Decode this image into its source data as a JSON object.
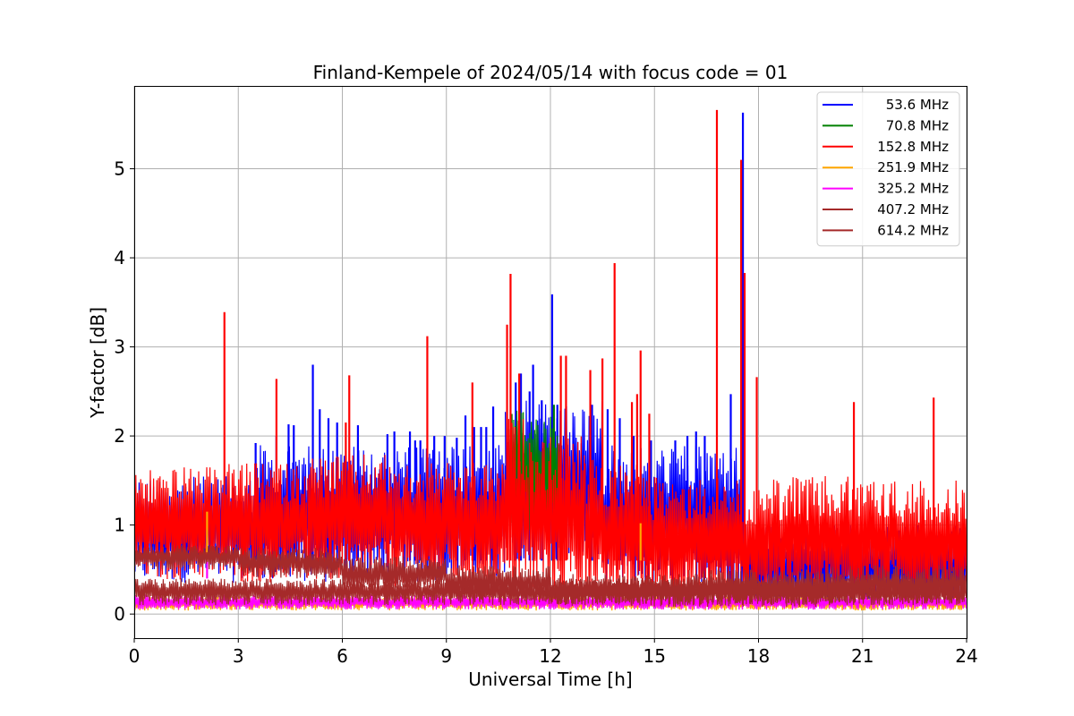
{
  "chart_data": {
    "type": "line",
    "title": "Finland-Kempele of 2024/05/14 with focus code = 01",
    "xlabel": "Universal Time [h]",
    "ylabel": "Y-factor [dB]",
    "xlim": [
      0,
      24
    ],
    "ylim": [
      -0.27,
      5.93
    ],
    "xticks": [
      0,
      3,
      6,
      9,
      12,
      15,
      18,
      21,
      24
    ],
    "yticks": [
      0,
      1,
      2,
      3,
      4,
      5
    ],
    "grid": true,
    "legend_position": "top-right",
    "series": [
      {
        "name": "53.6 MHz",
        "color": "#0000ff",
        "segments": [
          {
            "x": [
              0,
              3.5
            ],
            "low": 0.35,
            "high": 1.55
          },
          {
            "x": [
              3.5,
              10.7
            ],
            "low": 0.35,
            "high": 1.9
          },
          {
            "x": [
              10.7,
              13.5
            ],
            "low": 0.6,
            "high": 2.4
          },
          {
            "x": [
              13.5,
              17.5
            ],
            "low": 0.3,
            "high": 1.9
          },
          {
            "x": [
              17.5,
              24
            ],
            "low": 0.1,
            "high": 1.0
          }
        ],
        "spikes": [
          {
            "x": 3.5,
            "y": 1.92
          },
          {
            "x": 4.1,
            "y": 2.0
          },
          {
            "x": 4.45,
            "y": 2.13
          },
          {
            "x": 4.6,
            "y": 2.12
          },
          {
            "x": 5.15,
            "y": 2.8
          },
          {
            "x": 5.35,
            "y": 2.3
          },
          {
            "x": 5.6,
            "y": 2.2
          },
          {
            "x": 5.85,
            "y": 2.15
          },
          {
            "x": 6.45,
            "y": 2.12
          },
          {
            "x": 7.3,
            "y": 2.02
          },
          {
            "x": 7.5,
            "y": 2.05
          },
          {
            "x": 7.95,
            "y": 2.05
          },
          {
            "x": 8.1,
            "y": 1.95
          },
          {
            "x": 8.25,
            "y": 1.95
          },
          {
            "x": 8.65,
            "y": 2.0
          },
          {
            "x": 8.95,
            "y": 2.0
          },
          {
            "x": 9.3,
            "y": 1.98
          },
          {
            "x": 9.55,
            "y": 2.23
          },
          {
            "x": 9.8,
            "y": 2.1
          },
          {
            "x": 10.0,
            "y": 2.1
          },
          {
            "x": 10.15,
            "y": 2.1
          },
          {
            "x": 10.35,
            "y": 2.33
          },
          {
            "x": 11.0,
            "y": 2.6
          },
          {
            "x": 11.15,
            "y": 2.7
          },
          {
            "x": 11.4,
            "y": 2.5
          },
          {
            "x": 11.5,
            "y": 2.8
          },
          {
            "x": 11.75,
            "y": 2.4
          },
          {
            "x": 12.05,
            "y": 3.59
          },
          {
            "x": 12.2,
            "y": 2.35
          },
          {
            "x": 13.2,
            "y": 2.35
          },
          {
            "x": 13.65,
            "y": 2.3
          },
          {
            "x": 14.0,
            "y": 2.2
          },
          {
            "x": 14.4,
            "y": 2.0
          },
          {
            "x": 14.9,
            "y": 1.95
          },
          {
            "x": 15.6,
            "y": 1.95
          },
          {
            "x": 15.95,
            "y": 2.0
          },
          {
            "x": 16.2,
            "y": 2.05
          },
          {
            "x": 16.45,
            "y": 2.0
          },
          {
            "x": 17.2,
            "y": 2.47
          },
          {
            "x": 17.55,
            "y": 5.63
          }
        ]
      },
      {
        "name": "70.8 MHz",
        "color": "#008000",
        "segments": [
          {
            "x": [
              10.8,
              12.3
            ],
            "low": 0.9,
            "high": 2.3
          }
        ],
        "spikes": [
          {
            "x": 12.1,
            "y": 2.35
          }
        ]
      },
      {
        "name": "152.8 MHz",
        "color": "#ff0000",
        "segments": [
          {
            "x": [
              0,
              2.5
            ],
            "low": 0.38,
            "high": 1.65
          },
          {
            "x": [
              2.5,
              5.0
            ],
            "low": 0.35,
            "high": 1.7
          },
          {
            "x": [
              5.0,
              7.5
            ],
            "low": 0.35,
            "high": 1.8
          },
          {
            "x": [
              7.5,
              10.75
            ],
            "low": 0.3,
            "high": 1.7
          },
          {
            "x": [
              10.75,
              11.4
            ],
            "low": 0.2,
            "high": 2.2
          },
          {
            "x": [
              11.4,
              13.0
            ],
            "low": 0.2,
            "high": 2.0
          },
          {
            "x": [
              13.0,
              14.5
            ],
            "low": 0.15,
            "high": 1.75
          },
          {
            "x": [
              14.5,
              17.5
            ],
            "low": 0.12,
            "high": 1.55
          },
          {
            "x": [
              17.5,
              18.3
            ],
            "low": 0.12,
            "high": 1.4
          },
          {
            "x": [
              18.3,
              21.0
            ],
            "low": 0.12,
            "high": 1.55
          },
          {
            "x": [
              21.0,
              24.0
            ],
            "low": 0.15,
            "high": 1.5
          }
        ],
        "spikes": [
          {
            "x": 2.6,
            "y": 3.39
          },
          {
            "x": 4.1,
            "y": 2.64
          },
          {
            "x": 6.2,
            "y": 2.68
          },
          {
            "x": 6.1,
            "y": 2.15
          },
          {
            "x": 8.45,
            "y": 3.12
          },
          {
            "x": 9.75,
            "y": 2.6
          },
          {
            "x": 10.75,
            "y": 3.25
          },
          {
            "x": 10.85,
            "y": 3.82
          },
          {
            "x": 11.1,
            "y": 2.7
          },
          {
            "x": 12.3,
            "y": 2.9
          },
          {
            "x": 12.45,
            "y": 2.9
          },
          {
            "x": 13.15,
            "y": 2.74
          },
          {
            "x": 13.5,
            "y": 2.87
          },
          {
            "x": 13.85,
            "y": 3.94
          },
          {
            "x": 14.35,
            "y": 2.38
          },
          {
            "x": 14.5,
            "y": 2.47
          },
          {
            "x": 14.6,
            "y": 2.96
          },
          {
            "x": 14.85,
            "y": 2.25
          },
          {
            "x": 16.8,
            "y": 5.66
          },
          {
            "x": 17.5,
            "y": 5.1
          },
          {
            "x": 17.6,
            "y": 3.83
          },
          {
            "x": 17.95,
            "y": 2.66
          },
          {
            "x": 20.75,
            "y": 2.38
          },
          {
            "x": 23.05,
            "y": 2.43
          }
        ]
      },
      {
        "name": "251.9 MHz",
        "color": "#ffa500",
        "segments": [
          {
            "x": [
              0,
              24
            ],
            "low": 0.04,
            "high": 0.2
          }
        ],
        "spikes": [
          {
            "x": 2.1,
            "y": 1.15
          },
          {
            "x": 14.6,
            "y": 1.02
          }
        ]
      },
      {
        "name": "325.2 MHz",
        "color": "#ff00ff",
        "segments": [
          {
            "x": [
              0,
              24
            ],
            "low": 0.05,
            "high": 0.22
          }
        ],
        "spikes": [
          {
            "x": 2.1,
            "y": 0.4
          }
        ]
      },
      {
        "name": "407.2 MHz",
        "color": "#a52a2a",
        "segments": [
          {
            "x": [
              0,
              24
            ],
            "low": 0.1,
            "high": 0.4
          }
        ],
        "spikes": []
      },
      {
        "name": "614.2 MHz",
        "color": "#a52a2a",
        "segments": [
          {
            "x": [
              0,
              3.0
            ],
            "low": 0.5,
            "high": 0.78
          },
          {
            "x": [
              3.0,
              6.0
            ],
            "low": 0.4,
            "high": 0.75
          },
          {
            "x": [
              6.0,
              9.0
            ],
            "low": 0.25,
            "high": 0.65
          },
          {
            "x": [
              9.0,
              12.0
            ],
            "low": 0.15,
            "high": 0.55
          },
          {
            "x": [
              12.0,
              16.0
            ],
            "low": 0.08,
            "high": 0.45
          },
          {
            "x": [
              16.0,
              20.0
            ],
            "low": 0.08,
            "high": 0.5
          },
          {
            "x": [
              20.0,
              24.0
            ],
            "low": 0.1,
            "high": 0.55
          }
        ],
        "spikes": []
      }
    ]
  }
}
